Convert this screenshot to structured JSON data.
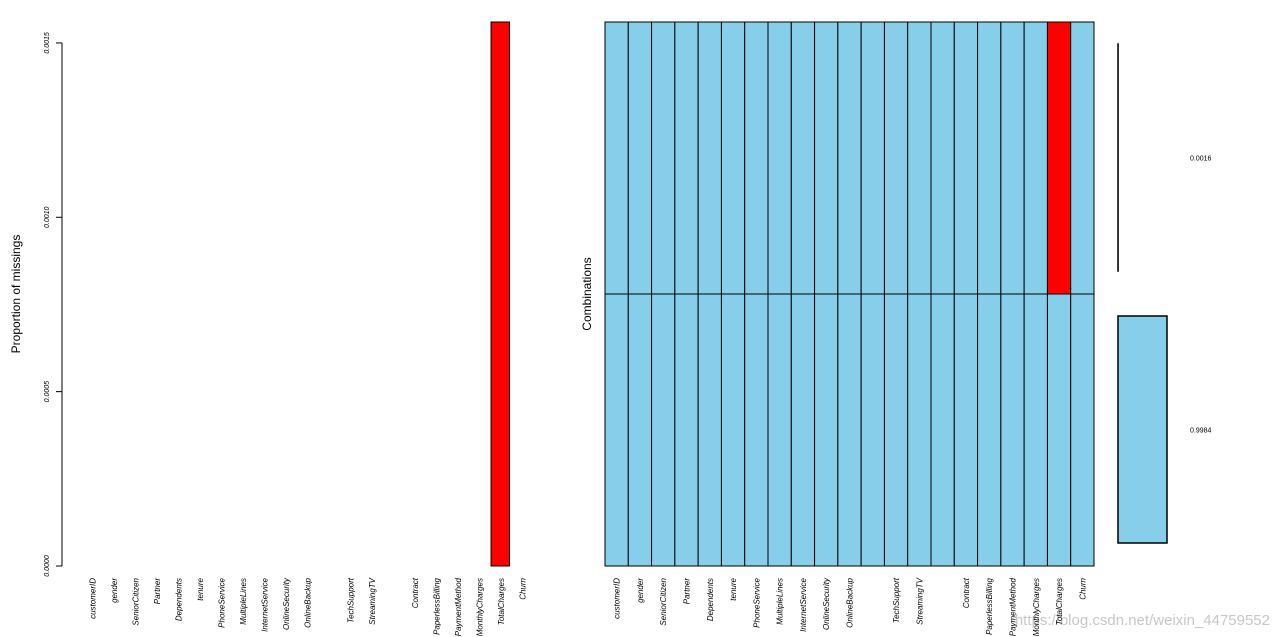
{
  "chart_data": [
    {
      "type": "bar",
      "ylabel": "Proportion of missings",
      "categories": [
        "customerID",
        "gender",
        "SeniorCitizen",
        "Partner",
        "Dependents",
        "tenure",
        "PhoneService",
        "MultipleLines",
        "InternetService",
        "OnlineSecurity",
        "OnlineBackup",
        null,
        "TechSupport",
        "StreamingTV",
        null,
        "Contract",
        "PaperlessBilling",
        "PaymentMethod",
        "MonthlyCharges",
        "TotalCharges",
        "Churn"
      ],
      "values": [
        0,
        0,
        0,
        0,
        0,
        0,
        0,
        0,
        0,
        0,
        0,
        0,
        0,
        0,
        0,
        0,
        0,
        0,
        0,
        0.00156,
        0
      ],
      "color": "#ff0000",
      "ylim": [
        0,
        0.00156
      ],
      "yticks": [
        {
          "value": 0,
          "label": "0.0000"
        },
        {
          "value": 0.0005,
          "label": "0.0005"
        },
        {
          "value": 0.001,
          "label": "0.0010"
        },
        {
          "value": 0.0015,
          "label": "0.0015"
        }
      ]
    },
    {
      "type": "combinations",
      "ylabel": "Combinations",
      "categories": [
        "customerID",
        "gender",
        "SeniorCitizen",
        "Partner",
        "Dependents",
        "tenure",
        "PhoneService",
        "MultipleLines",
        "InternetService",
        "OnlineSecurity",
        "OnlineBackup",
        null,
        "TechSupport",
        "StreamingTV",
        null,
        "Contract",
        "PaperlessBilling",
        "PaymentMethod",
        "MonthlyCharges",
        "TotalCharges",
        "Churn"
      ],
      "color": "#87ceeb",
      "missing_color": "#ff0000",
      "rows": [
        {
          "cells": [
            0,
            0,
            0,
            0,
            0,
            0,
            0,
            0,
            0,
            0,
            0,
            0,
            0,
            0,
            0,
            0,
            0,
            0,
            0,
            1,
            0
          ],
          "proportion": 0.0016
        },
        {
          "cells": [
            0,
            0,
            0,
            0,
            0,
            0,
            0,
            0,
            0,
            0,
            0,
            0,
            0,
            0,
            0,
            0,
            0,
            0,
            0,
            0,
            0
          ],
          "proportion": 0.9984
        }
      ]
    }
  ],
  "watermark": "https://blog.csdn.net/weixin_44759552"
}
